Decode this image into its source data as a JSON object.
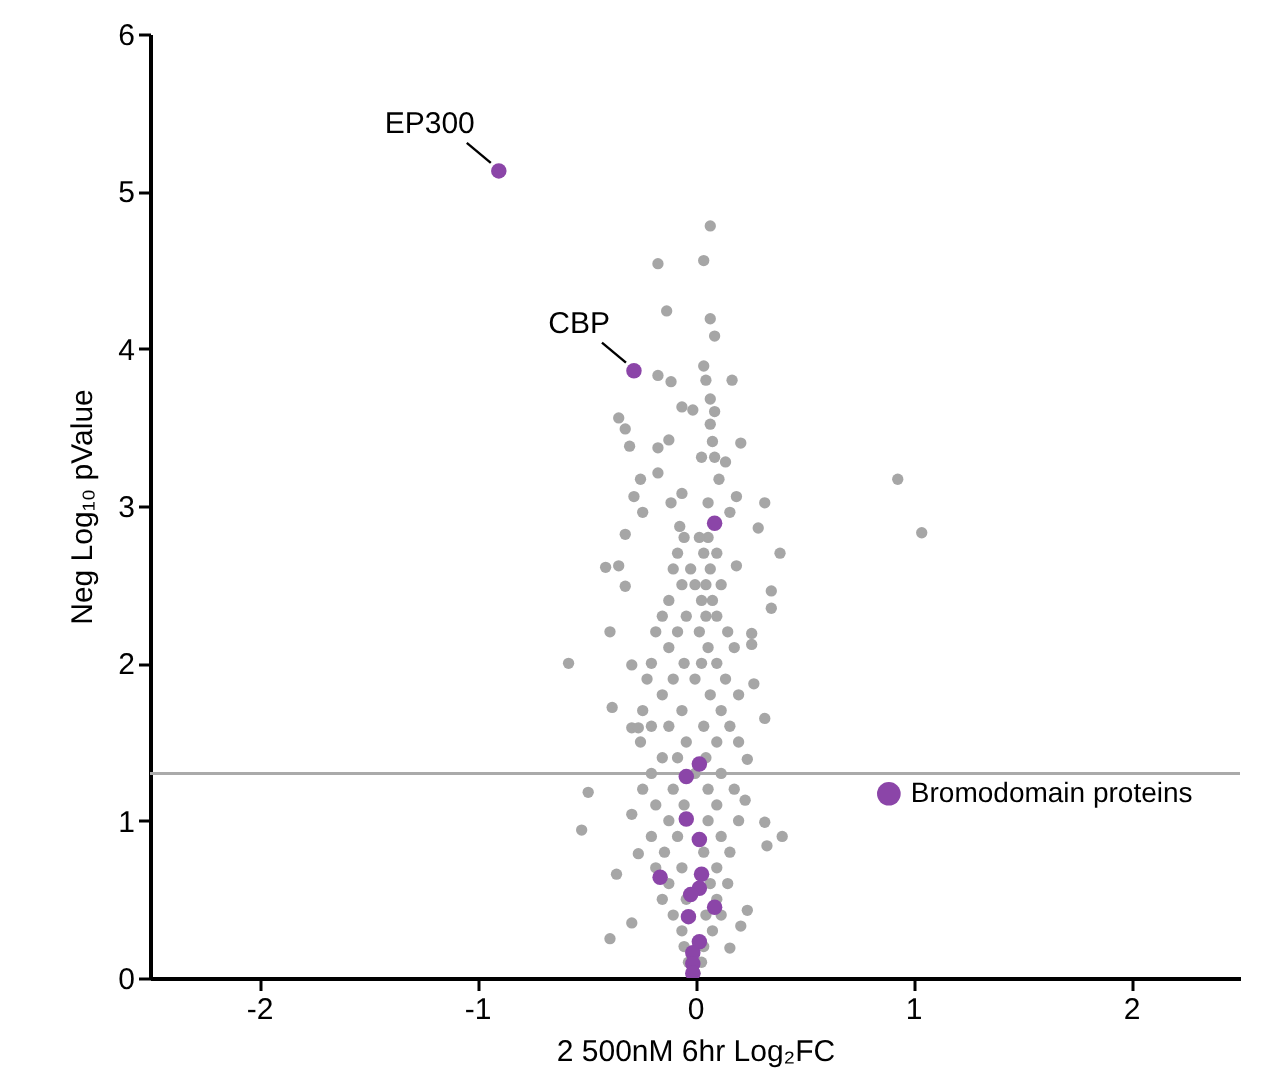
{
  "chart_data": {
    "type": "scatter",
    "xlabel": "2 500nM 6hr Log₂FC",
    "ylabel": "Neg Log₁₀ pValue",
    "xlim": [
      -2.5,
      2.5
    ],
    "ylim": [
      0,
      6
    ],
    "xticks": [
      -2,
      -1,
      0,
      1,
      2
    ],
    "yticks": [
      0,
      1,
      2,
      3,
      4,
      5,
      6
    ],
    "grid": false,
    "legend": "right",
    "marker": "circle",
    "ref_lines": [
      {
        "axis": "y",
        "value": 1.3,
        "color": "#aaaaaa"
      }
    ],
    "annotations": [
      {
        "text": "EP300",
        "x": -0.9,
        "y": 5.13
      },
      {
        "text": "CBP",
        "x": -0.28,
        "y": 3.86
      }
    ],
    "series": [
      {
        "color": "#a6a6a6",
        "x": [
          0.93,
          1.04,
          0.07,
          -0.17,
          0.04,
          -0.13,
          0.07,
          0.09,
          -0.17,
          -0.11,
          0.04,
          0.05,
          0.17,
          0.07,
          -0.35,
          -0.32,
          -0.06,
          -0.01,
          0.09,
          0.07,
          -0.3,
          -0.12,
          -0.17,
          0.08,
          0.21,
          0.03,
          0.09,
          0.14,
          -0.25,
          -0.17,
          0.11,
          -0.28,
          -0.06,
          -0.11,
          0.06,
          0.19,
          0.32,
          -0.24,
          0.16,
          0.29,
          -0.32,
          -0.07,
          0.39,
          -0.41,
          -0.35,
          0.19,
          0.35,
          -0.32,
          0.35,
          -0.58,
          -0.39,
          -0.29,
          0.26,
          0.26,
          0.27,
          -0.38,
          0.32,
          -0.29,
          -0.26,
          0.24,
          -0.49,
          -0.52,
          -0.29,
          0.23,
          0.32,
          0.4,
          0.33,
          -0.36,
          -0.26,
          -0.29,
          -0.39,
          0.24,
          0.16,
          0.21,
          -0.05,
          0.06,
          0.02,
          -0.08,
          0.04,
          0.1,
          -0.02,
          0.07,
          -0.1,
          0.05,
          -0.06,
          0.12,
          0.0,
          -0.12,
          0.08,
          0.03,
          0.1,
          -0.04,
          -0.15,
          0.05,
          -0.08,
          0.15,
          0.02,
          -0.18,
          0.06,
          -0.12,
          0.18,
          -0.05,
          0.1,
          -0.2,
          0.03,
          0.14,
          -0.1,
          0.0,
          -0.22,
          0.07,
          -0.15,
          0.2,
          -0.06,
          0.12,
          -0.24,
          0.04,
          -0.12,
          0.16,
          -0.2,
          -0.04,
          0.1,
          0.2,
          -0.25,
          0.05,
          -0.15,
          -0.08,
          0.12,
          -0.2,
          0.0,
          -0.1,
          0.06,
          0.18,
          -0.24,
          0.1,
          -0.05,
          -0.18,
          0.06,
          -0.12,
          0.2,
          -0.08,
          0.12,
          -0.2,
          0.04,
          -0.14,
          0.16,
          -0.06,
          0.1,
          -0.18,
          0.07,
          -0.12,
          0.15,
          -0.04,
          0.1,
          -0.15,
          0.05,
          -0.1,
          0.12,
          -0.06,
          0.08,
          0.04,
          -0.05,
          -0.03,
          0.03,
          0.0
        ],
        "values": [
          3.17,
          2.83,
          4.78,
          4.54,
          4.56,
          4.24,
          4.19,
          4.08,
          3.83,
          3.79,
          3.89,
          3.8,
          3.8,
          3.68,
          3.56,
          3.49,
          3.63,
          3.61,
          3.6,
          3.52,
          3.38,
          3.42,
          3.37,
          3.41,
          3.4,
          3.31,
          3.31,
          3.28,
          3.17,
          3.21,
          3.17,
          3.06,
          3.08,
          3.02,
          3.02,
          3.06,
          3.02,
          2.96,
          2.96,
          2.86,
          2.82,
          2.87,
          2.7,
          2.61,
          2.62,
          2.62,
          2.46,
          2.49,
          2.35,
          2.0,
          2.2,
          1.99,
          2.19,
          2.12,
          1.87,
          1.72,
          1.65,
          1.59,
          1.59,
          1.39,
          1.18,
          0.94,
          1.04,
          1.13,
          0.99,
          0.9,
          0.84,
          0.66,
          0.79,
          0.35,
          0.25,
          0.43,
          0.19,
          0.33,
          2.8,
          2.8,
          2.8,
          2.7,
          2.7,
          2.7,
          2.6,
          2.6,
          2.6,
          2.5,
          2.5,
          2.5,
          2.5,
          2.4,
          2.4,
          2.4,
          2.3,
          2.3,
          2.3,
          2.3,
          2.2,
          2.2,
          2.2,
          2.2,
          2.1,
          2.1,
          2.1,
          2.0,
          2.0,
          2.0,
          2.0,
          1.9,
          1.9,
          1.9,
          1.9,
          1.8,
          1.8,
          1.8,
          1.7,
          1.7,
          1.7,
          1.6,
          1.6,
          1.6,
          1.6,
          1.5,
          1.5,
          1.5,
          1.5,
          1.4,
          1.4,
          1.4,
          1.3,
          1.3,
          1.3,
          1.2,
          1.2,
          1.2,
          1.2,
          1.1,
          1.1,
          1.1,
          1.0,
          1.0,
          1.0,
          0.9,
          0.9,
          0.9,
          0.8,
          0.8,
          0.8,
          0.7,
          0.7,
          0.7,
          0.6,
          0.6,
          0.6,
          0.5,
          0.5,
          0.5,
          0.4,
          0.4,
          0.4,
          0.3,
          0.3,
          0.2,
          0.2,
          0.1,
          0.1,
          0.03
        ]
      },
      {
        "name": "Bromodomain proteins",
        "color": "#8b45a8",
        "x": [
          -0.9,
          -0.28,
          0.09,
          0.02,
          -0.04,
          -0.04,
          0.02,
          -0.16,
          0.03,
          0.02,
          -0.02,
          0.09,
          -0.03,
          0.02,
          -0.01,
          -0.01,
          -0.01
        ],
        "values": [
          5.13,
          3.86,
          2.89,
          1.36,
          1.28,
          1.01,
          0.88,
          0.64,
          0.66,
          0.57,
          0.53,
          0.45,
          0.39,
          0.23,
          0.16,
          0.09,
          0.03
        ]
      }
    ]
  }
}
